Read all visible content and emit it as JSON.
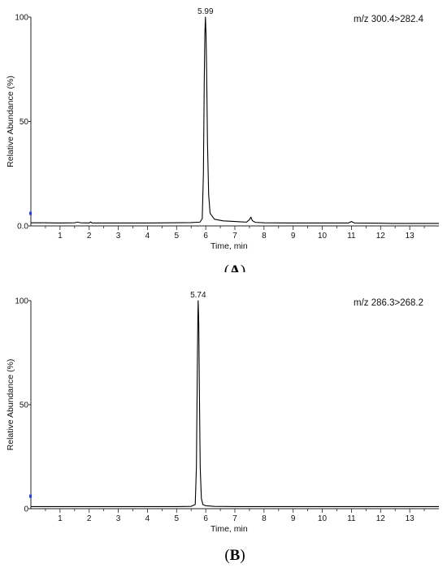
{
  "chart_data": [
    {
      "panel_label": "(A)",
      "type": "line",
      "xlabel": "Time, min",
      "ylabel": "Relative Abundance (%)",
      "annotation": "m/z  300.4>282.4",
      "xlim": [
        0,
        14
      ],
      "ylim": [
        0,
        100
      ],
      "x_ticks": [
        "1",
        "2",
        "3",
        "4",
        "5",
        "6",
        "7",
        "8",
        "9",
        "10",
        "11",
        "12",
        "13"
      ],
      "y_ticks": [
        "0.0",
        "50",
        "100"
      ],
      "peak": {
        "x": 5.99,
        "label": "5.99"
      },
      "series": [
        {
          "x": [
            0.0,
            0.5,
            1.0,
            1.5,
            1.6,
            1.7,
            2.0,
            2.05,
            2.1,
            3.0,
            4.0,
            4.8,
            5.5,
            5.8,
            5.88,
            5.92,
            5.95,
            5.97,
            5.99,
            6.01,
            6.03,
            6.06,
            6.1,
            6.15,
            6.3,
            6.6,
            7.0,
            7.4,
            7.5,
            7.55,
            7.6,
            7.7,
            8.0,
            9.0,
            10.0,
            10.9,
            11.0,
            11.1,
            12.0,
            12.4,
            12.5,
            14.0
          ],
          "y": [
            1.5,
            1.5,
            1.4,
            1.5,
            1.8,
            1.5,
            1.4,
            1.9,
            1.4,
            1.4,
            1.4,
            1.5,
            1.6,
            1.8,
            3.5,
            25,
            70,
            92,
            100,
            92,
            75,
            40,
            15,
            6,
            3.2,
            2.4,
            2.1,
            1.8,
            3.0,
            4.2,
            2.5,
            1.7,
            1.5,
            1.4,
            1.4,
            1.4,
            2.1,
            1.4,
            1.3,
            1.2,
            1.2,
            1.2
          ]
        }
      ]
    },
    {
      "panel_label": "(B)",
      "type": "line",
      "xlabel": "Time, min",
      "ylabel": "Relative Abundance (%)",
      "annotation": "m/z  286.3>268.2",
      "xlim": [
        0,
        14
      ],
      "ylim": [
        0,
        100
      ],
      "x_ticks": [
        "1",
        "2",
        "3",
        "4",
        "5",
        "6",
        "7",
        "8",
        "9",
        "10",
        "11",
        "12",
        "13"
      ],
      "y_ticks": [
        "0",
        "50",
        "100"
      ],
      "peak": {
        "x": 5.74,
        "label": "5.74"
      },
      "series": [
        {
          "x": [
            0.0,
            1.0,
            2.0,
            3.0,
            4.0,
            5.0,
            5.5,
            5.64,
            5.68,
            5.71,
            5.73,
            5.74,
            5.76,
            5.78,
            5.81,
            5.85,
            5.9,
            6.0,
            6.3,
            7.0,
            8.0,
            9.0,
            10.0,
            11.0,
            12.0,
            13.0,
            14.0
          ],
          "y": [
            1.0,
            1.0,
            1.0,
            1.0,
            1.0,
            1.0,
            1.1,
            2.0,
            20,
            65,
            92,
            100,
            90,
            60,
            20,
            5,
            2.0,
            1.4,
            1.1,
            1.0,
            1.0,
            1.0,
            1.0,
            1.0,
            1.0,
            1.0,
            1.0
          ]
        }
      ]
    }
  ]
}
